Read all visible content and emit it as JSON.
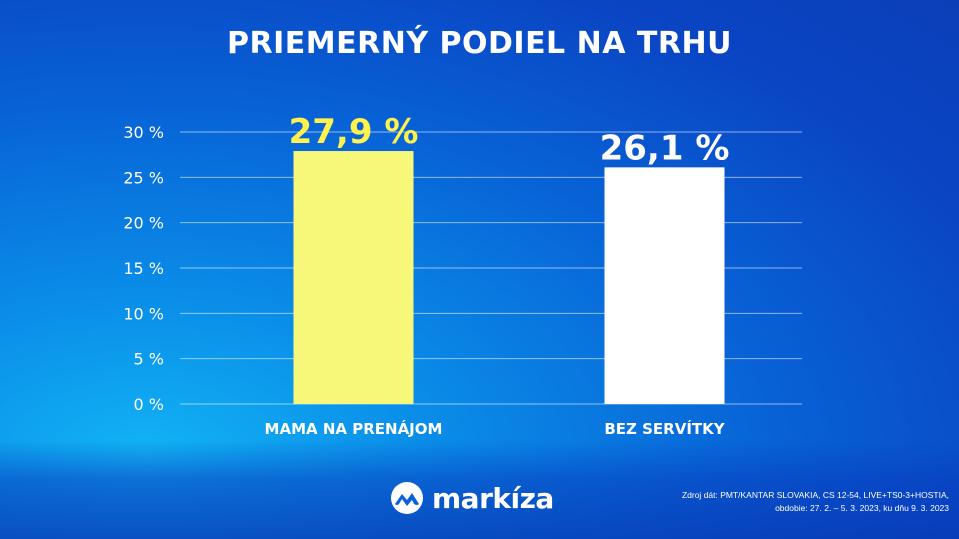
{
  "title": "PRIEMERNÝ PODIEL NA TRHU",
  "brand": "markíza",
  "source": {
    "line1": "Zdroj dát: PMT/KANTAR SLOVAKIA, CS 12-54, LIVE+TS0-3+HOSTIA,",
    "line2": "obdobie: 27. 2. – 5. 3. 2023, ku dňu 9. 3. 2023"
  },
  "colors": {
    "highlight": "#f7f77a",
    "highlight_label": "#fff24d",
    "second_bar": "#ffffff",
    "background": "#0a62d8"
  },
  "chart_data": {
    "type": "bar",
    "title": "PRIEMERNÝ PODIEL NA TRHU",
    "categories": [
      "MAMA NA PRENÁJOM",
      "BEZ SERVÍTKY"
    ],
    "values": [
      27.9,
      26.1
    ],
    "data_labels": [
      "27,9 %",
      "26,1 %"
    ],
    "ylim": [
      0,
      30
    ],
    "yticks": [
      0,
      5,
      10,
      15,
      20,
      25,
      30
    ],
    "ytick_labels": [
      "0 %",
      "5 %",
      "10 %",
      "15 %",
      "20 %",
      "25 %",
      "30 %"
    ],
    "grid": true,
    "xlabel": "",
    "ylabel": ""
  }
}
